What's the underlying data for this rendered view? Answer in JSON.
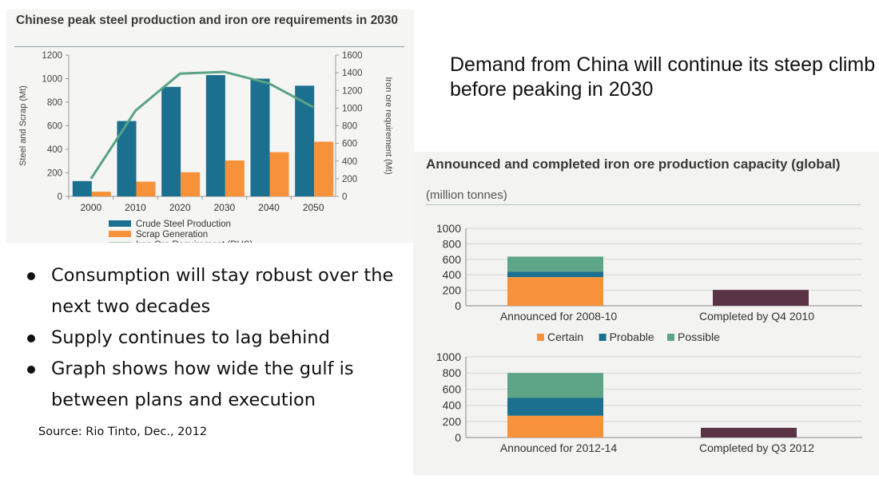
{
  "headline": "Demand from China will continue its steep climb before peaking in 2030",
  "bullets": [
    "Consumption will stay robust over the next two decades",
    "Supply continues to lag behind",
    "Graph shows how wide the gulf is between plans and execution"
  ],
  "source": "Source: Rio Tinto, Dec., 2012",
  "chart_data": [
    {
      "type": "bar",
      "title": "Chinese peak steel production and iron ore requirements in 2030",
      "categories": [
        "2000",
        "2010",
        "2020",
        "2030",
        "2040",
        "2050"
      ],
      "ylabel": "Steel and Scrap (Mt)",
      "ylim": [
        0,
        1200
      ],
      "yticks": [
        "0",
        "200",
        "400",
        "600",
        "800",
        "1000",
        "1200"
      ],
      "y2label": "Iron ore requirement (Mt)",
      "y2lim": [
        0,
        1600
      ],
      "y2ticks": [
        "0",
        "200",
        "400",
        "600",
        "800",
        "1000",
        "1200",
        "1400",
        "1600"
      ],
      "series": [
        {
          "name": "Crude Steel Production",
          "color": "#1b6f8f",
          "values": [
            130,
            640,
            930,
            1030,
            1000,
            940
          ]
        },
        {
          "name": "Scrap Generation",
          "color": "#f7923a",
          "values": [
            40,
            125,
            205,
            305,
            375,
            465
          ]
        },
        {
          "name": "Iron Ore Requirement (RHS)",
          "color": "#5aa383",
          "type": "line",
          "axis": "right",
          "values": [
            200,
            970,
            1390,
            1410,
            1280,
            1010
          ]
        }
      ],
      "legend_position": "bottom",
      "grid": false
    },
    {
      "type": "bar",
      "stacked": true,
      "title": "Announced and completed iron ore production capacity (global)",
      "subtitle": "(million tonnes)",
      "legend": [
        "Certain",
        "Probable",
        "Possible"
      ],
      "legend_colors": [
        "#f7923a",
        "#1b6f8f",
        "#5ea487"
      ],
      "completed_color": "#5b3347",
      "panels": [
        {
          "categories": [
            "Announced for 2008-10",
            "Completed by Q4 2010"
          ],
          "ylim": [
            0,
            1000
          ],
          "yticks": [
            "0",
            "200",
            "400",
            "600",
            "800",
            "1000"
          ],
          "stacks": [
            {
              "Certain": 370,
              "Probable": 70,
              "Possible": 195
            },
            {
              "Completed": 205
            }
          ]
        },
        {
          "categories": [
            "Announced for 2012-14",
            "Completed by Q3 2012"
          ],
          "ylim": [
            0,
            1000
          ],
          "yticks": [
            "0",
            "200",
            "400",
            "600",
            "800",
            "1000"
          ],
          "stacks": [
            {
              "Certain": 270,
              "Probable": 220,
              "Possible": 310
            },
            {
              "Completed": 120
            }
          ]
        }
      ],
      "legend_position": "between panels",
      "grid": true
    }
  ]
}
